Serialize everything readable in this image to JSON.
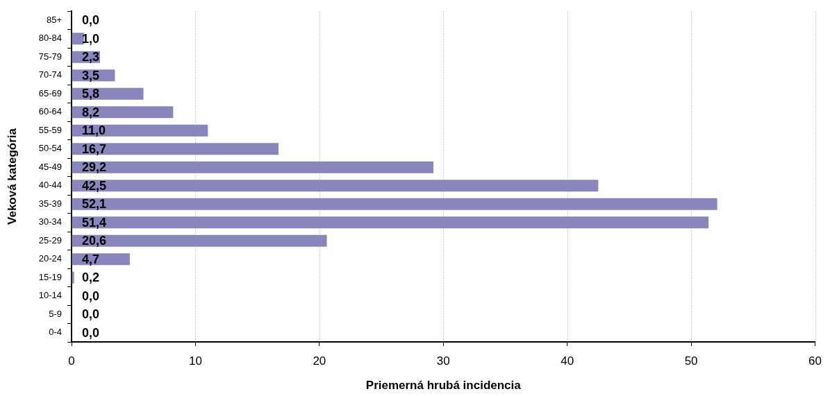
{
  "chart_data": {
    "type": "bar",
    "orientation": "horizontal",
    "xlabel": "Priemerná hrubá incidencia",
    "ylabel": "Veková kategória",
    "categories": [
      "85+",
      "80-84",
      "75-79",
      "70-74",
      "65-69",
      "60-64",
      "55-59",
      "50-54",
      "45-49",
      "40-44",
      "35-39",
      "30-34",
      "25-29",
      "20-24",
      "15-19",
      "10-14",
      "5-9",
      "0-4"
    ],
    "values": [
      0,
      1.0,
      2.3,
      3.5,
      5.8,
      8.2,
      11.0,
      16.7,
      29.2,
      42.5,
      52.1,
      51.4,
      20.6,
      4.7,
      0.2,
      0,
      0,
      0
    ],
    "value_labels": [
      "0,0",
      "1,0",
      "2,3",
      "3,5",
      "5,8",
      "8,2",
      "11,0",
      "16,7",
      "29,2",
      "42,5",
      "52,1",
      "51,4",
      "20,6",
      "4,7",
      "0,2",
      "0,0",
      "0,0",
      "0,0"
    ],
    "color": "#8886bc",
    "xlim": [
      0,
      60
    ],
    "xticks": [
      0,
      10,
      20,
      30,
      40,
      50,
      60
    ],
    "grid": "x"
  }
}
